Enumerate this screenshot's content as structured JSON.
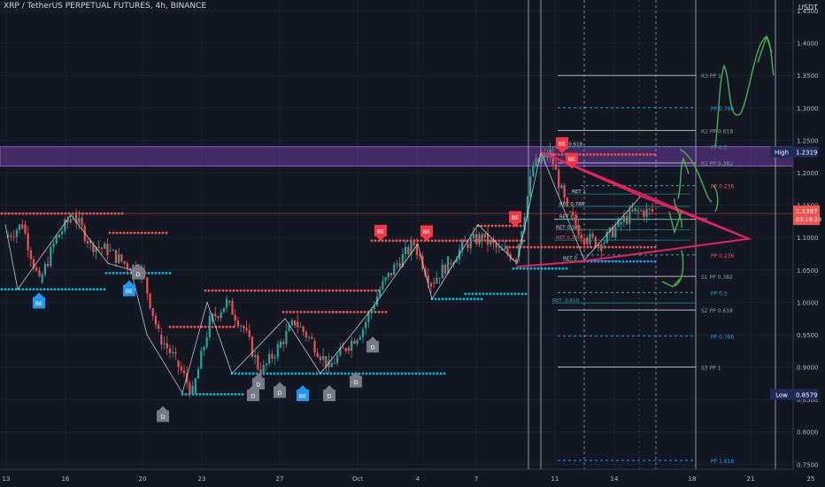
{
  "header": {
    "title": "XRP / TetherUS PERPETUAL FUTURES, 4h, BINANCE",
    "currency": "USDT"
  },
  "colors": {
    "background": "#131722",
    "up": "#26a69a",
    "down": "#ef5350",
    "resistance_dots": "#ef5350",
    "support_dots": "#00bcd4",
    "zone": "#6a3d9a",
    "triangle": "#e91e63",
    "annotation": "#4caf50",
    "price_tag": "#ef5350",
    "high_tag": "#1e2a5a",
    "low_tag": "#1e2a5a"
  },
  "chart_data": {
    "type": "candlestick",
    "symbol": "XRP / TetherUS PERPETUAL FUTURES",
    "timeframe": "4h",
    "exchange": "BINANCE",
    "ylim": [
      0.745,
      1.45
    ],
    "y_ticks": [
      "1.4500",
      "1.4000",
      "1.3500",
      "1.3000",
      "1.2500",
      "1.2000",
      "1.1500",
      "1.1000",
      "1.0500",
      "1.0000",
      "0.9500",
      "0.9000",
      "0.8500",
      "0.8000",
      "0.7500"
    ],
    "x_ticks": [
      "13",
      "16",
      "20",
      "23",
      "27",
      "Oct",
      "4",
      "7",
      "11",
      "14",
      "18",
      "21",
      "25"
    ],
    "price_series": [
      {
        "t": "13",
        "v": 1.1
      },
      {
        "t": "13.5",
        "v": 1.12
      },
      {
        "t": "14",
        "v": 1.03
      },
      {
        "t": "15",
        "v": 1.1
      },
      {
        "t": "16",
        "v": 1.135
      },
      {
        "t": "17",
        "v": 1.09
      },
      {
        "t": "18",
        "v": 1.08
      },
      {
        "t": "19",
        "v": 1.06
      },
      {
        "t": "19.5",
        "v": 1.05
      },
      {
        "t": "20",
        "v": 0.95
      },
      {
        "t": "20.5",
        "v": 0.91
      },
      {
        "t": "21",
        "v": 0.86
      },
      {
        "t": "22",
        "v": 0.97
      },
      {
        "t": "22.5",
        "v": 1.0
      },
      {
        "t": "23",
        "v": 0.96
      },
      {
        "t": "24",
        "v": 0.89
      },
      {
        "t": "25",
        "v": 0.93
      },
      {
        "t": "26",
        "v": 0.97
      },
      {
        "t": "27",
        "v": 0.94
      },
      {
        "t": "28",
        "v": 0.9
      },
      {
        "t": "29",
        "v": 0.93
      },
      {
        "t": "30",
        "v": 0.96
      },
      {
        "t": "Oct",
        "v": 1.02
      },
      {
        "t": "2",
        "v": 1.06
      },
      {
        "t": "3",
        "v": 1.09
      },
      {
        "t": "4",
        "v": 1.03
      },
      {
        "t": "5",
        "v": 1.06
      },
      {
        "t": "6",
        "v": 1.09
      },
      {
        "t": "7",
        "v": 1.1
      },
      {
        "t": "8",
        "v": 1.08
      },
      {
        "t": "9",
        "v": 1.07
      },
      {
        "t": "10",
        "v": 1.21
      },
      {
        "t": "10.5",
        "v": 1.23
      },
      {
        "t": "11",
        "v": 1.14
      },
      {
        "t": "12",
        "v": 1.1
      },
      {
        "t": "13",
        "v": 1.09
      },
      {
        "t": "14",
        "v": 1.12
      },
      {
        "t": "15",
        "v": 1.14
      },
      {
        "t": "15.5",
        "v": 1.1397
      }
    ],
    "labels": [
      {
        "text": "BE",
        "type": "bull"
      },
      {
        "text": "BE",
        "type": "bull"
      },
      {
        "text": "BE",
        "type": "bull"
      },
      {
        "text": "BE",
        "type": "bear"
      },
      {
        "text": "BE",
        "type": "bear"
      },
      {
        "text": "BE",
        "type": "bear"
      },
      {
        "text": "BE",
        "type": "bear"
      },
      {
        "text": "BE",
        "type": "bear"
      },
      {
        "text": "D",
        "type": "neutral"
      },
      {
        "text": "D",
        "type": "neutral"
      },
      {
        "text": "D",
        "type": "neutral"
      },
      {
        "text": "D",
        "type": "neutral"
      },
      {
        "text": "D",
        "type": "neutral"
      },
      {
        "text": "D",
        "type": "neutral"
      },
      {
        "text": "D",
        "type": "neutral"
      },
      {
        "text": "D",
        "type": "neutral"
      },
      {
        "text": "D",
        "type": "neutral"
      }
    ],
    "pivot_levels": [
      {
        "label": "R3 PP 1",
        "value": 1.35
      },
      {
        "label": "PP 0.786",
        "value": 1.3
      },
      {
        "label": "R2 PP 0.618",
        "value": 1.265
      },
      {
        "label": "PP 0.5",
        "value": 1.24
      },
      {
        "label": "R1 PP 0.382",
        "value": 1.215
      },
      {
        "label": "PP 0.236",
        "value": 1.18
      },
      {
        "label": "PP",
        "value": 1.128
      },
      {
        "label": "PP 0.236",
        "value": 1.073
      },
      {
        "label": "S1 PP 0.382",
        "value": 1.04
      },
      {
        "label": "PP 0.5",
        "value": 1.015
      },
      {
        "label": "S2 PP 0.618",
        "value": 0.988
      },
      {
        "label": "PP 0.786",
        "value": 0.948
      },
      {
        "label": "S3 PP 1",
        "value": 0.9
      },
      {
        "label": "PP 1.618",
        "value": 0.756
      }
    ],
    "retracement_levels": [
      {
        "label": "RET 0.618",
        "value": 1.24
      },
      {
        "label": "RET 1",
        "value": 1.167
      },
      {
        "label": "RET 0.786",
        "value": 1.148
      },
      {
        "label": "RET 0.5",
        "value": 1.128
      },
      {
        "label": "RET 0.382",
        "value": 1.112
      },
      {
        "label": "RET 0.236",
        "value": 1.096
      },
      {
        "label": "RET 0",
        "value": 1.064
      },
      {
        "label": "RET -0.618",
        "value": 0.999
      }
    ],
    "zone": {
      "from": 1.21,
      "to": 1.24
    },
    "resistance_lines": [
      1.137,
      1.132,
      1.095,
      1.085,
      1.018,
      0.985,
      1.107
    ],
    "support_lines": [
      1.02,
      1.045,
      0.918,
      0.858,
      0.89,
      1.005,
      1.013,
      1.052,
      1.065
    ],
    "price_tags": [
      {
        "label": "High",
        "value": "1.2319",
        "price": 1.2319
      },
      {
        "label": "",
        "value": "1.1397",
        "price": 1.1397,
        "sub": "03:19:23"
      },
      {
        "label": "Low",
        "value": "0.8579",
        "price": 0.8579
      }
    ]
  }
}
